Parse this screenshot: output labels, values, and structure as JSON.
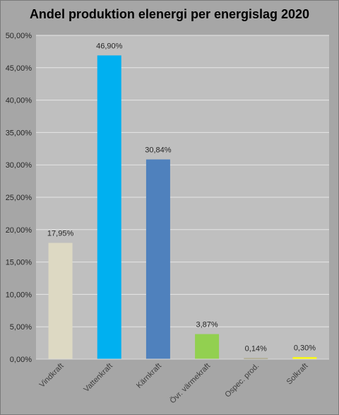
{
  "chart_data": {
    "type": "bar",
    "title": "Andel produktion elenergi per energislag 2020",
    "xlabel": "",
    "ylabel": "",
    "ylim": [
      0,
      50
    ],
    "yticks": [
      "0,00%",
      "5,00%",
      "10,00%",
      "15,00%",
      "20,00%",
      "25,00%",
      "30,00%",
      "35,00%",
      "40,00%",
      "45,00%",
      "50,00%"
    ],
    "categories": [
      "Vindkraft",
      "Vattenkraft",
      "Kärnkraft",
      "Övr. värmekraft",
      "Ospec. prod.",
      "Solkraft"
    ],
    "values": [
      17.95,
      46.9,
      30.84,
      3.87,
      0.14,
      0.3
    ],
    "data_labels": [
      "17,95%",
      "46,90%",
      "30,84%",
      "3,87%",
      "0,14%",
      "0,30%"
    ],
    "colors": [
      "#ddd9c3",
      "#00b0f0",
      "#4f81bd",
      "#92d050",
      "#948a54",
      "#ffff00"
    ],
    "grid": true,
    "legend": "none"
  }
}
